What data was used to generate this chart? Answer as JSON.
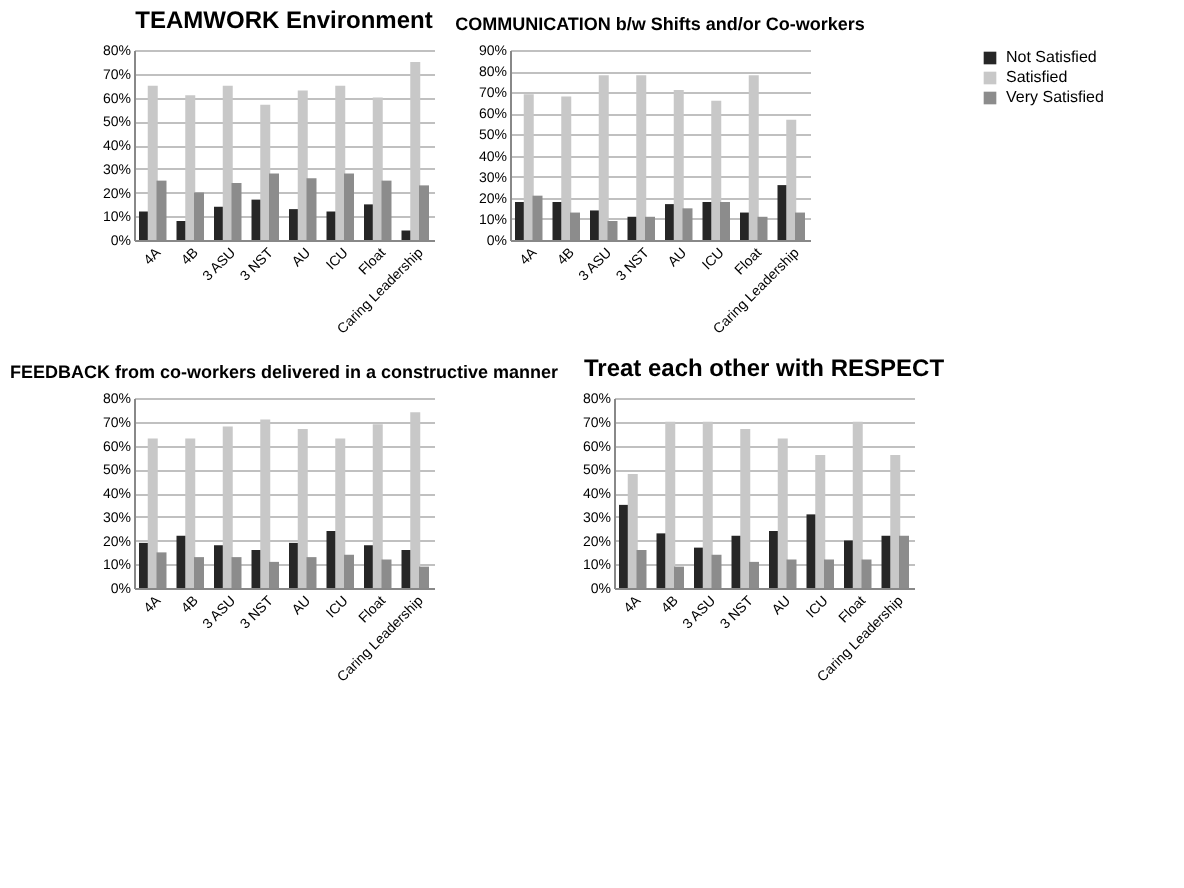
{
  "chart_data": [
    {
      "type": "bar",
      "title": "TEAMWORK Environment",
      "categories": [
        "4A",
        "4B",
        "3 ASU",
        "3 NST",
        "AU",
        "ICU",
        "Float",
        "Caring Leadership"
      ],
      "legend": "right",
      "grid": "y",
      "ylim": [
        0,
        80
      ],
      "yticks": [
        {
          "value": 0,
          "label": "0%"
        },
        {
          "value": 10,
          "label": "10%"
        },
        {
          "value": 20,
          "label": "20%"
        },
        {
          "value": 30,
          "label": "30%"
        },
        {
          "value": 40,
          "label": "40%"
        },
        {
          "value": 50,
          "label": "50%"
        },
        {
          "value": 60,
          "label": "60%"
        },
        {
          "value": 70,
          "label": "70%"
        },
        {
          "value": 80,
          "label": "80%"
        }
      ],
      "series": [
        {
          "name": "Not Satisfied",
          "color": "#262626",
          "values": [
            12,
            8,
            14,
            17,
            13,
            12,
            15,
            4
          ]
        },
        {
          "name": "Satisfied",
          "color": "#c8c8c8",
          "values": [
            65,
            61,
            65,
            57,
            63,
            65,
            60,
            75
          ]
        },
        {
          "name": "Very Satisfied",
          "color": "#8c8c8c",
          "values": [
            25,
            20,
            24,
            28,
            26,
            28,
            25,
            23
          ]
        }
      ]
    },
    {
      "type": "bar",
      "title": "COMMUNICATION b/w Shifts and/or Co-workers",
      "categories": [
        "4A",
        "4B",
        "3 ASU",
        "3 NST",
        "AU",
        "ICU",
        "Float",
        "Caring Leadership"
      ],
      "legend": "right",
      "grid": "y",
      "ylim": [
        0,
        90
      ],
      "yticks": [
        {
          "value": 0,
          "label": "0%"
        },
        {
          "value": 10,
          "label": "10%"
        },
        {
          "value": 20,
          "label": "20%"
        },
        {
          "value": 30,
          "label": "30%"
        },
        {
          "value": 40,
          "label": "40%"
        },
        {
          "value": 50,
          "label": "50%"
        },
        {
          "value": 60,
          "label": "60%"
        },
        {
          "value": 70,
          "label": "70%"
        },
        {
          "value": 80,
          "label": "80%"
        },
        {
          "value": 90,
          "label": "90%"
        }
      ],
      "series": [
        {
          "name": "Not Satisfied",
          "color": "#262626",
          "values": [
            18,
            18,
            14,
            11,
            17,
            18,
            13,
            26
          ]
        },
        {
          "name": "Satisfied",
          "color": "#c8c8c8",
          "values": [
            69,
            68,
            78,
            78,
            71,
            66,
            78,
            57
          ]
        },
        {
          "name": "Very Satisfied",
          "color": "#8c8c8c",
          "values": [
            21,
            13,
            9,
            11,
            15,
            18,
            11,
            13
          ]
        }
      ]
    },
    {
      "type": "bar",
      "title": "FEEDBACK from co-workers delivered in a constructive manner",
      "categories": [
        "4A",
        "4B",
        "3 ASU",
        "3 NST",
        "AU",
        "ICU",
        "Float",
        "Caring Leadership"
      ],
      "legend": "right",
      "grid": "y",
      "ylim": [
        0,
        80
      ],
      "yticks": [
        {
          "value": 0,
          "label": "0%"
        },
        {
          "value": 10,
          "label": "10%"
        },
        {
          "value": 20,
          "label": "20%"
        },
        {
          "value": 30,
          "label": "30%"
        },
        {
          "value": 40,
          "label": "40%"
        },
        {
          "value": 50,
          "label": "50%"
        },
        {
          "value": 60,
          "label": "60%"
        },
        {
          "value": 70,
          "label": "70%"
        },
        {
          "value": 80,
          "label": "80%"
        }
      ],
      "series": [
        {
          "name": "Not Satisfied",
          "color": "#262626",
          "values": [
            19,
            22,
            18,
            16,
            19,
            24,
            18,
            16
          ]
        },
        {
          "name": "Satisfied",
          "color": "#c8c8c8",
          "values": [
            63,
            63,
            68,
            71,
            67,
            63,
            69,
            74
          ]
        },
        {
          "name": "Very Satisfied",
          "color": "#8c8c8c",
          "values": [
            15,
            13,
            13,
            11,
            13,
            14,
            12,
            9
          ]
        }
      ]
    },
    {
      "type": "bar",
      "title": "Treat each other with RESPECT",
      "categories": [
        "4A",
        "4B",
        "3 ASU",
        "3 NST",
        "AU",
        "ICU",
        "Float",
        "Caring Leadership"
      ],
      "legend": "right",
      "grid": "y",
      "ylim": [
        0,
        80
      ],
      "yticks": [
        {
          "value": 0,
          "label": "0%"
        },
        {
          "value": 10,
          "label": "10%"
        },
        {
          "value": 20,
          "label": "20%"
        },
        {
          "value": 30,
          "label": "30%"
        },
        {
          "value": 40,
          "label": "40%"
        },
        {
          "value": 50,
          "label": "50%"
        },
        {
          "value": 60,
          "label": "60%"
        },
        {
          "value": 70,
          "label": "70%"
        },
        {
          "value": 80,
          "label": "80%"
        }
      ],
      "series": [
        {
          "name": "Not Satisfied",
          "color": "#262626",
          "values": [
            35,
            23,
            17,
            22,
            24,
            31,
            20,
            22
          ]
        },
        {
          "name": "Satisfied",
          "color": "#c8c8c8",
          "values": [
            48,
            70,
            70,
            67,
            63,
            56,
            70,
            56
          ]
        },
        {
          "name": "Very Satisfied",
          "color": "#8c8c8c",
          "values": [
            16,
            9,
            14,
            11,
            12,
            12,
            12,
            22
          ]
        }
      ]
    }
  ]
}
